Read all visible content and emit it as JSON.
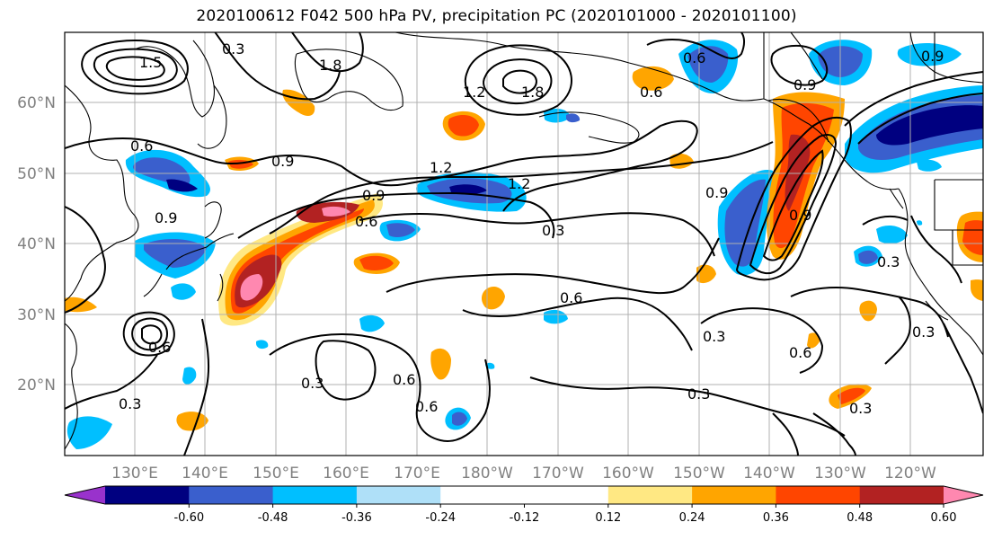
{
  "title": "2020100612 F042 500 hPa PV, precipitation PC (2020101000 - 2020101100)",
  "lat_labels": [
    "60°N",
    "50°N",
    "40°N",
    "30°N",
    "20°N"
  ],
  "lon_labels": [
    "130°E",
    "140°E",
    "150°E",
    "160°E",
    "170°E",
    "180°W",
    "170°W",
    "160°W",
    "150°W",
    "140°W",
    "130°W",
    "120°W"
  ],
  "colorbar": {
    "colors": [
      "#9932cc",
      "#000080",
      "#3a5fcd",
      "#00bfff",
      "#afe0f8",
      "#ffffff",
      "#ffffff",
      "#ffe883",
      "#ffa500",
      "#ff4500",
      "#b22222",
      "#ff88b0"
    ],
    "tick_labels": [
      "-0.60",
      "-0.48",
      "-0.36",
      "-0.24",
      "-0.12",
      "0.12",
      "0.24",
      "0.36",
      "0.48",
      "0.60"
    ]
  },
  "contour_labels": [
    "0.3",
    "0.6",
    "0.9",
    "1.2",
    "1.5",
    "1.8"
  ]
}
